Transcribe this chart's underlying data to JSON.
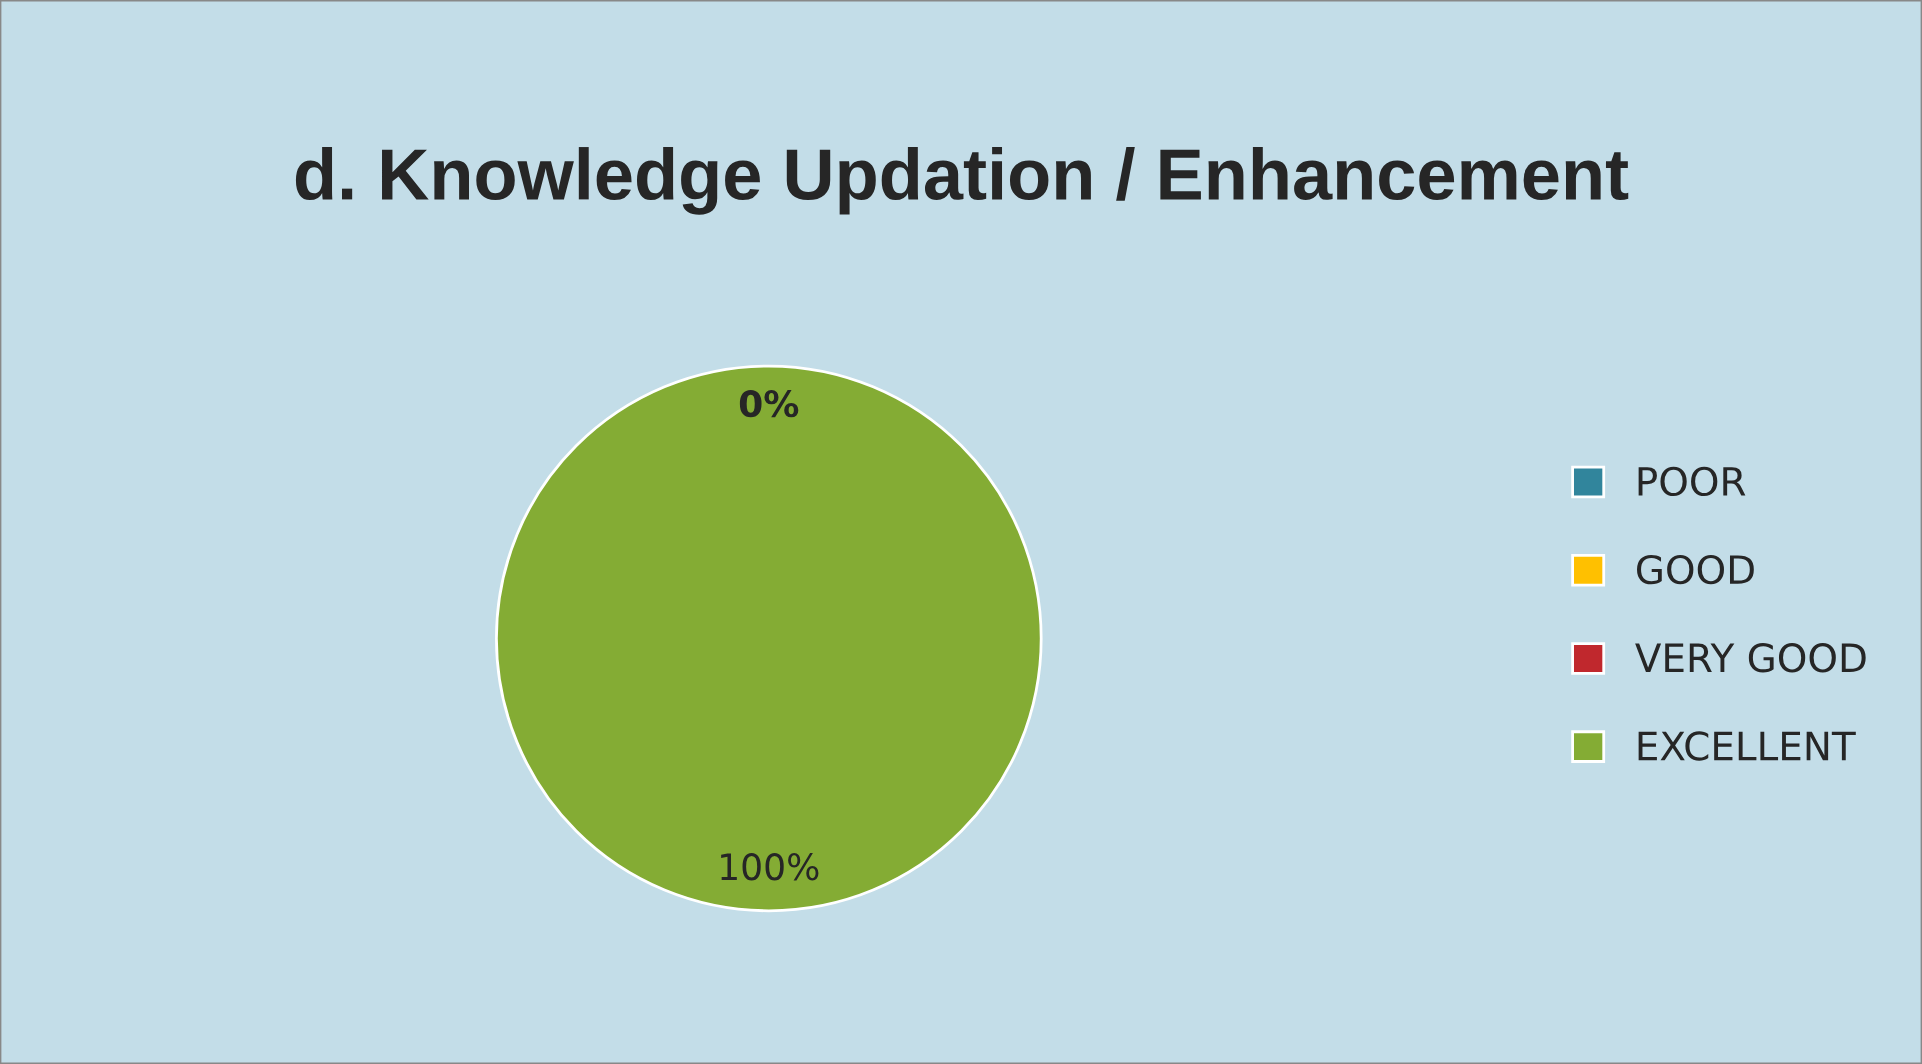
{
  "chart_data": {
    "type": "pie",
    "title": "d. Knowledge Updation / Enhancement",
    "categories": [
      "POOR",
      "GOOD",
      "VERY GOOD",
      "EXCELLENT"
    ],
    "values": [
      0,
      0,
      0,
      100
    ],
    "colors": [
      "#31859c",
      "#ffc000",
      "#c0282d",
      "#84ac34"
    ],
    "value_labels": [
      "0%",
      null,
      null,
      "100%"
    ],
    "legend": "right"
  }
}
